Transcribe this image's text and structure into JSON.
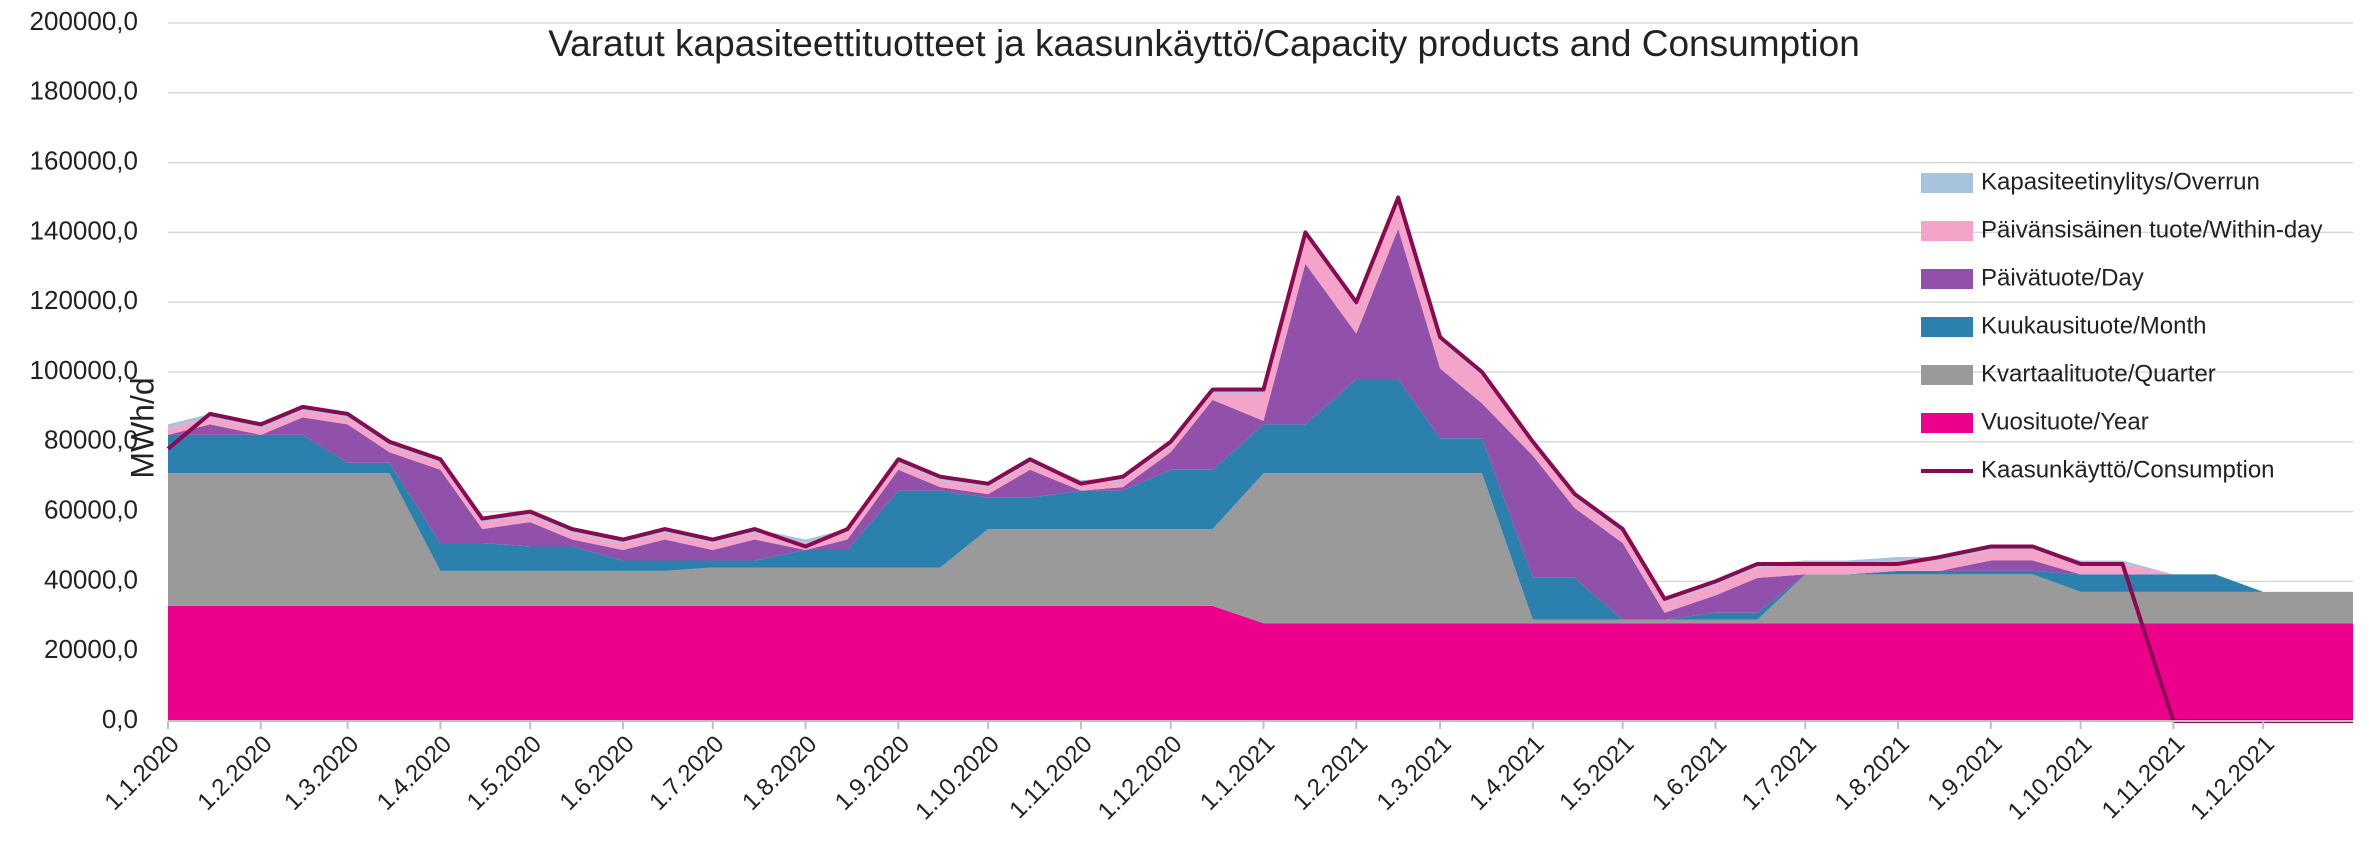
{
  "chart_data": {
    "type": "stacked_area",
    "title": "Varatut kapasiteettituotteet ja kaasunkäyttö/Capacity products and Consumption",
    "y_label": "MWh/d",
    "x": [
      "1.1.2020",
      "15.1.2020",
      "1.2.2020",
      "15.2.2020",
      "1.3.2020",
      "15.3.2020",
      "1.4.2020",
      "15.4.2020",
      "1.5.2020",
      "15.5.2020",
      "1.6.2020",
      "15.6.2020",
      "1.7.2020",
      "15.7.2020",
      "1.8.2020",
      "15.8.2020",
      "1.9.2020",
      "15.9.2020",
      "1.10.2020",
      "15.10.2020",
      "1.11.2020",
      "15.11.2020",
      "1.12.2020",
      "15.12.2020",
      "1.1.2021",
      "15.1.2021",
      "1.2.2021",
      "15.2.2021",
      "1.3.2021",
      "15.3.2021",
      "1.4.2021",
      "15.4.2021",
      "1.5.2021",
      "15.5.2021",
      "1.6.2021",
      "15.6.2021",
      "1.7.2021",
      "15.7.2021",
      "1.8.2021",
      "15.8.2021",
      "1.9.2021",
      "15.9.2021",
      "1.10.2021",
      "15.10.2021",
      "1.11.2021",
      "15.11.2021",
      "1.12.2021",
      "31.12.2021"
    ],
    "xlim": [
      "1.1.2020",
      "31.12.2021"
    ],
    "xticks": [
      "1.1.2020",
      "1.2.2020",
      "1.3.2020",
      "1.4.2020",
      "1.5.2020",
      "1.6.2020",
      "1.7.2020",
      "1.8.2020",
      "1.9.2020",
      "1.10.2020",
      "1.11.2020",
      "1.12.2020",
      "1.1.2021",
      "1.2.2021",
      "1.3.2021",
      "1.4.2021",
      "1.5.2021",
      "1.6.2021",
      "1.7.2021",
      "1.8.2021",
      "1.9.2021",
      "1.10.2021",
      "1.11.2021",
      "1.12.2021"
    ],
    "ylim": [
      0,
      200000
    ],
    "yticks": [
      {
        "value": 0,
        "label": "0,0"
      },
      {
        "value": 20000,
        "label": "20000,0"
      },
      {
        "value": 40000,
        "label": "40000,0"
      },
      {
        "value": 60000,
        "label": "60000,0"
      },
      {
        "value": 80000,
        "label": "80000,0"
      },
      {
        "value": 100000,
        "label": "100000,0"
      },
      {
        "value": 120000,
        "label": "120000,0"
      },
      {
        "value": 140000,
        "label": "140000,0"
      },
      {
        "value": 160000,
        "label": "160000,0"
      },
      {
        "value": 180000,
        "label": "180000,0"
      },
      {
        "value": 200000,
        "label": "200000,0"
      }
    ],
    "grid": true,
    "legend": "right",
    "series": [
      {
        "name": "Vuosituote/Year",
        "color": "#ec008c",
        "values": [
          33000,
          33000,
          33000,
          33000,
          33000,
          33000,
          33000,
          33000,
          33000,
          33000,
          33000,
          33000,
          33000,
          33000,
          33000,
          33000,
          33000,
          33000,
          33000,
          33000,
          33000,
          33000,
          33000,
          33000,
          28000,
          28000,
          28000,
          28000,
          28000,
          28000,
          28000,
          28000,
          28000,
          28000,
          28000,
          28000,
          28000,
          28000,
          28000,
          28000,
          28000,
          28000,
          28000,
          28000,
          28000,
          28000,
          28000,
          28000
        ]
      },
      {
        "name": "Kvartaalituote/Quarter",
        "color": "#9a9a9a",
        "values": [
          38000,
          38000,
          38000,
          38000,
          38000,
          38000,
          10000,
          10000,
          10000,
          10000,
          10000,
          10000,
          11000,
          11000,
          11000,
          11000,
          11000,
          11000,
          22000,
          22000,
          22000,
          22000,
          22000,
          22000,
          43000,
          43000,
          43000,
          43000,
          43000,
          43000,
          1000,
          1000,
          1000,
          1000,
          1000,
          1000,
          14000,
          14000,
          14000,
          14000,
          14000,
          14000,
          9000,
          9000,
          9000,
          9000,
          9000,
          9000
        ]
      },
      {
        "name": "Kuukausituote/Month",
        "color": "#2b80ad",
        "values": [
          11000,
          11000,
          11000,
          11000,
          3000,
          3000,
          8000,
          8000,
          7000,
          7000,
          3000,
          3000,
          2000,
          2000,
          5000,
          5000,
          22000,
          22000,
          9000,
          9000,
          11000,
          11000,
          17000,
          17000,
          14000,
          14000,
          27000,
          27000,
          10000,
          10000,
          12000,
          12000,
          0,
          0,
          2000,
          2000,
          0,
          0,
          1000,
          1000,
          1000,
          1000,
          5000,
          5000,
          5000,
          5000,
          0,
          0
        ]
      },
      {
        "name": "Päivätuote/Day",
        "color": "#9150aa",
        "values": [
          0,
          3000,
          0,
          5000,
          11000,
          3000,
          21000,
          4000,
          7000,
          2000,
          3000,
          6000,
          3000,
          6000,
          0,
          3000,
          6000,
          1000,
          1000,
          8000,
          0,
          1000,
          5000,
          20000,
          1000,
          46000,
          13000,
          43000,
          20000,
          10000,
          35000,
          20000,
          22000,
          2000,
          5000,
          10000,
          0,
          0,
          0,
          0,
          3000,
          3000,
          0,
          0,
          0,
          0,
          0,
          0
        ]
      },
      {
        "name": "Päivänsisäinen tuote/Within-day",
        "color": "#f4a3c9",
        "values": [
          2000,
          2000,
          2000,
          2000,
          2000,
          2000,
          2000,
          2000,
          2000,
          2000,
          2000,
          2000,
          2000,
          2000,
          2000,
          2000,
          2000,
          2000,
          2000,
          2000,
          2000,
          2000,
          2000,
          2000,
          8000,
          8000,
          8000,
          8000,
          8000,
          8000,
          3000,
          3000,
          3000,
          3000,
          3000,
          3000,
          3000,
          3000,
          3000,
          3000,
          3000,
          3000,
          3000,
          3000,
          0,
          0,
          0,
          0
        ]
      },
      {
        "name": "Kapasiteetinylitys/Overrun",
        "color": "#a8c3dd",
        "values": [
          1000,
          1000,
          1000,
          1000,
          1000,
          1000,
          1000,
          1000,
          1000,
          1000,
          1000,
          1000,
          1000,
          1000,
          1000,
          1000,
          1000,
          1000,
          1000,
          1000,
          1000,
          1000,
          1000,
          1000,
          1000,
          1000,
          1000,
          1000,
          1000,
          1000,
          1000,
          1000,
          1000,
          1000,
          1000,
          1000,
          1000,
          1000,
          1000,
          1000,
          1000,
          1000,
          1000,
          1000,
          0,
          0,
          0,
          0
        ]
      }
    ],
    "line": {
      "name": "Kaasunkäyttö/Consumption",
      "color": "#8a0a52",
      "values": [
        78000,
        88000,
        85000,
        90000,
        88000,
        80000,
        75000,
        58000,
        60000,
        55000,
        52000,
        55000,
        52000,
        55000,
        50000,
        55000,
        75000,
        70000,
        68000,
        75000,
        68000,
        70000,
        80000,
        95000,
        95000,
        140000,
        120000,
        150000,
        110000,
        100000,
        80000,
        65000,
        55000,
        35000,
        40000,
        45000,
        45000,
        45000,
        45000,
        47000,
        50000,
        50000,
        45000,
        45000,
        0,
        0,
        0,
        0
      ]
    }
  }
}
